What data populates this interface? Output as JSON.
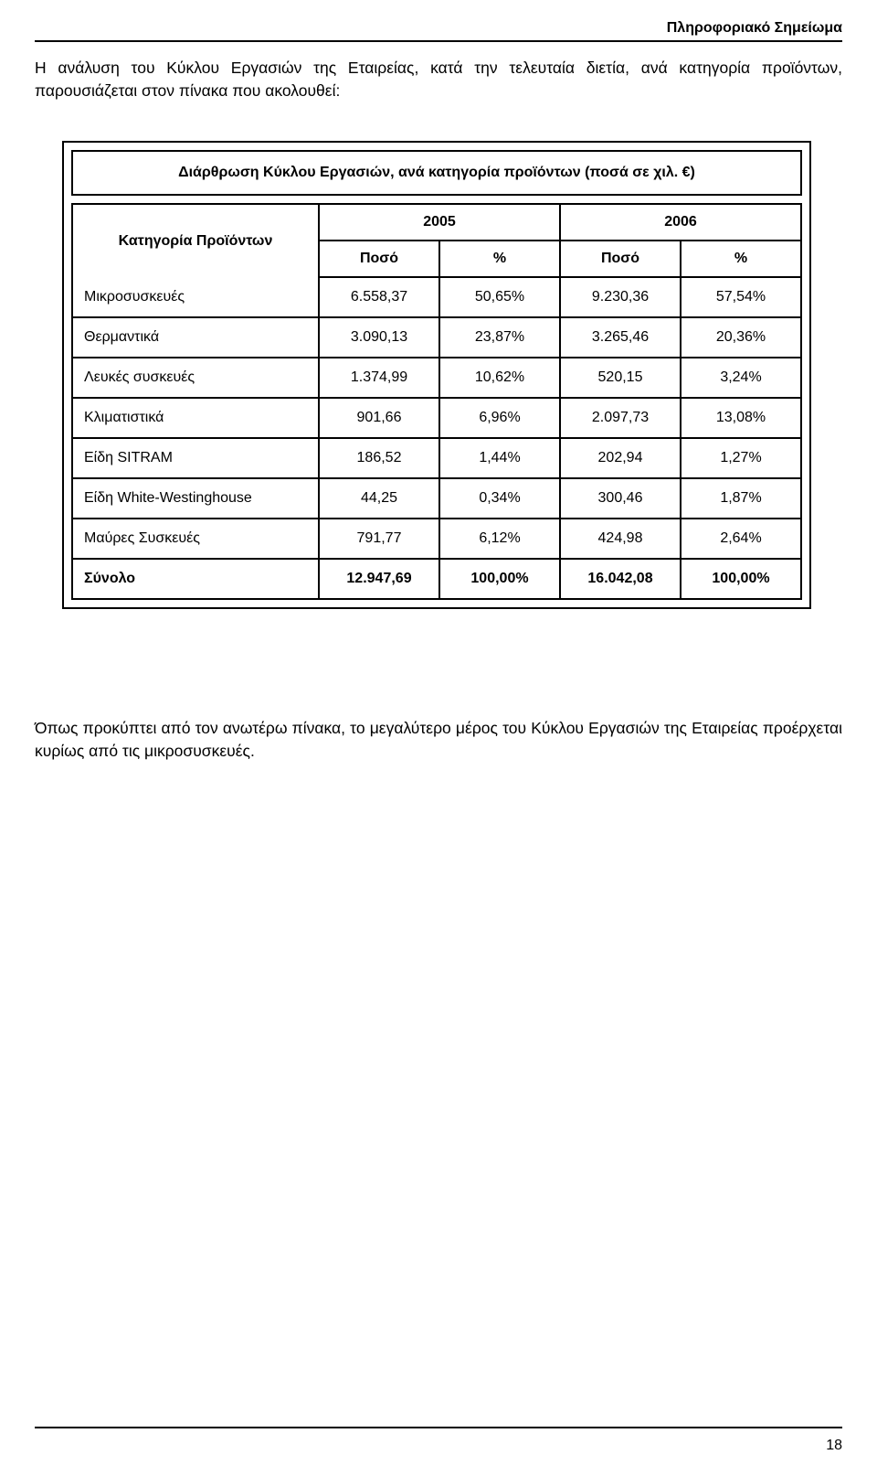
{
  "header_title": "Πληροφοριακό Σημείωμα",
  "intro_text": "Η ανάλυση του Κύκλου Εργασιών της Εταιρείας, κατά την τελευταία διετία, ανά κατηγορία προϊόντων, παρουσιάζεται στον πίνακα που ακολουθεί:",
  "table": {
    "type": "table",
    "title": "Διάρθρωση Κύκλου Εργασιών, ανά κατηγορία προϊόντων (ποσά σε χιλ. €)",
    "category_header": "Κατηγορία Προϊόντων",
    "year_headers": [
      "2005",
      "2006"
    ],
    "sub_headers": [
      "Ποσό",
      "%",
      "Ποσό",
      "%"
    ],
    "col_widths_pct": [
      34,
      16.5,
      16.5,
      16.5,
      16.5
    ],
    "header_fontsize": 16,
    "body_fontsize": 16,
    "border_color": "#000000",
    "background_color": "#ffffff",
    "rows": [
      {
        "label": "Μικροσυσκευές",
        "v": [
          "6.558,37",
          "50,65%",
          "9.230,36",
          "57,54%"
        ]
      },
      {
        "label": "Θερμαντικά",
        "v": [
          "3.090,13",
          "23,87%",
          "3.265,46",
          "20,36%"
        ]
      },
      {
        "label": "Λευκές συσκευές",
        "v": [
          "1.374,99",
          "10,62%",
          "520,15",
          "3,24%"
        ]
      },
      {
        "label": "Κλιματιστικά",
        "v": [
          "901,66",
          "6,96%",
          "2.097,73",
          "13,08%"
        ]
      },
      {
        "label": "Είδη SITRAM",
        "v": [
          "186,52",
          "1,44%",
          "202,94",
          "1,27%"
        ]
      },
      {
        "label": "Είδη White-Westinghouse",
        "v": [
          "44,25",
          "0,34%",
          "300,46",
          "1,87%"
        ]
      },
      {
        "label": "Μαύρες Συσκευές",
        "v": [
          "791,77",
          "6,12%",
          "424,98",
          "2,64%"
        ]
      }
    ],
    "total": {
      "label": "Σύνολο",
      "v": [
        "12.947,69",
        "100,00%",
        "16.042,08",
        "100,00%"
      ]
    }
  },
  "outro_text": "Όπως προκύπτει από τον ανωτέρω πίνακα, το μεγαλύτερο μέρος του Κύκλου Εργασιών της Εταιρείας προέρχεται κυρίως από τις μικροσυσκευές.",
  "page_number": "18",
  "colors": {
    "text": "#000000",
    "background": "#ffffff",
    "border": "#000000"
  },
  "fonts": {
    "family": "Verdana, Arial, sans-serif",
    "body_size_pt": 12,
    "header_bold": true
  }
}
